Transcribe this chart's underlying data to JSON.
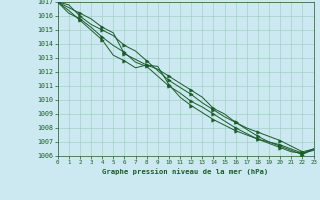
{
  "title": "Graphe pression niveau de la mer (hPa)",
  "bg_color": "#cce8f0",
  "grid_color": "#99ccbb",
  "line_color": "#1a5c2a",
  "marker_color": "#1a5c2a",
  "xlim": [
    0,
    23
  ],
  "ylim": [
    1006,
    1017
  ],
  "xticks": [
    0,
    1,
    2,
    3,
    4,
    5,
    6,
    7,
    8,
    9,
    10,
    11,
    12,
    13,
    14,
    15,
    16,
    17,
    18,
    19,
    20,
    21,
    22,
    23
  ],
  "yticks": [
    1006,
    1007,
    1008,
    1009,
    1010,
    1011,
    1012,
    1013,
    1014,
    1015,
    1016,
    1017
  ],
  "series": [
    [
      1017.0,
      1016.6,
      1016.2,
      1015.8,
      1015.2,
      1014.8,
      1013.3,
      1012.9,
      1012.5,
      1012.2,
      1011.7,
      1011.2,
      1010.7,
      1010.2,
      1009.4,
      1009.0,
      1008.4,
      1008.0,
      1007.7,
      1007.4,
      1007.1,
      1006.7,
      1006.3,
      1006.5
    ],
    [
      1017.0,
      1016.2,
      1015.8,
      1015.2,
      1014.5,
      1013.9,
      1013.4,
      1012.7,
      1012.4,
      1011.7,
      1011.0,
      1010.5,
      1009.9,
      1009.5,
      1009.0,
      1008.5,
      1008.0,
      1007.6,
      1007.2,
      1006.9,
      1006.6,
      1006.3,
      1006.2,
      1006.5
    ],
    [
      1017.0,
      1016.8,
      1016.0,
      1015.4,
      1015.0,
      1014.6,
      1013.9,
      1013.5,
      1012.8,
      1012.1,
      1011.4,
      1010.9,
      1010.4,
      1009.8,
      1009.3,
      1008.8,
      1008.4,
      1007.9,
      1007.4,
      1007.0,
      1006.8,
      1006.5,
      1006.2,
      1006.4
    ],
    [
      1017.0,
      1016.4,
      1015.7,
      1015.0,
      1014.3,
      1013.2,
      1012.8,
      1012.3,
      1012.5,
      1012.4,
      1011.1,
      1010.2,
      1009.6,
      1009.1,
      1008.6,
      1008.2,
      1007.8,
      1007.5,
      1007.2,
      1007.0,
      1006.7,
      1006.4,
      1006.1,
      1006.5
    ]
  ]
}
